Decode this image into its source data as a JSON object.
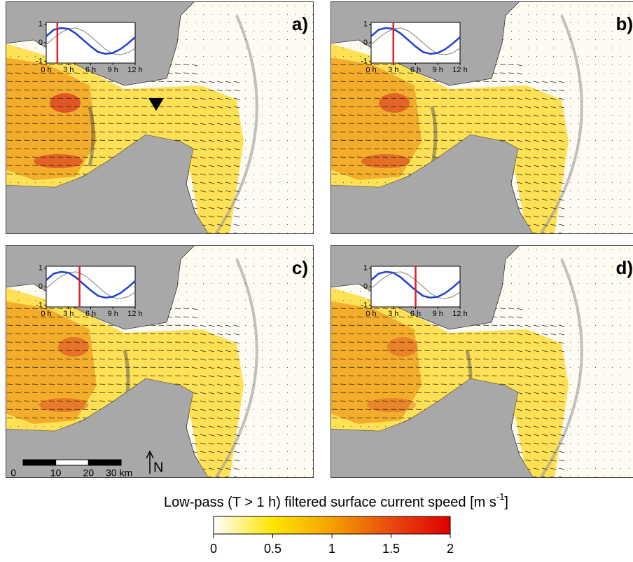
{
  "panels": [
    {
      "label": "a)",
      "marker_hour": 1.5
    },
    {
      "label": "b)",
      "marker_hour": 3
    },
    {
      "label": "c)",
      "marker_hour": 4.5
    },
    {
      "label": "d)",
      "marker_hour": 6
    }
  ],
  "inset": {
    "x": [
      0,
      1,
      2,
      3,
      4,
      5,
      6,
      7,
      8,
      9,
      10,
      11,
      12
    ],
    "series": [
      {
        "color": "#1f3fd0",
        "values": [
          0.35,
          0.7,
          0.8,
          0.75,
          0.5,
          0.15,
          -0.2,
          -0.5,
          -0.6,
          -0.55,
          -0.35,
          -0.05,
          0.3
        ]
      },
      {
        "color": "#808080",
        "values": [
          -0.1,
          0.25,
          0.55,
          0.75,
          0.8,
          0.65,
          0.35,
          0,
          -0.35,
          -0.6,
          -0.65,
          -0.55,
          -0.3
        ]
      }
    ],
    "xlim": [
      0,
      12
    ],
    "ylim": [
      -1.1,
      1.1
    ],
    "xticks": [
      {
        "value": 0,
        "label": "0 h"
      },
      {
        "value": 3,
        "label": "3 h"
      },
      {
        "value": 6,
        "label": "6 h"
      },
      {
        "value": 9,
        "label": "9 h"
      },
      {
        "value": 12,
        "label": "12 h"
      }
    ],
    "yticks": [
      1,
      0,
      -1
    ],
    "marker_color": "#e02020"
  },
  "scale_bar": {
    "lim": [
      0,
      30
    ],
    "ticks": [
      0,
      10,
      20,
      {
        "value": 30,
        "label": "30 km"
      }
    ]
  },
  "north": "N",
  "colorbar": {
    "title": "Low-pass (T > 1 h) filtered surface current speed [m s",
    "title_sup": "-1",
    "title_end": "]",
    "lim": [
      0,
      2
    ],
    "ticks": [
      0,
      0.5,
      1,
      1.5,
      2
    ],
    "colors": [
      "#ffffff",
      "#ffe600",
      "#f5a000",
      "#e84a10",
      "#e00000"
    ]
  }
}
